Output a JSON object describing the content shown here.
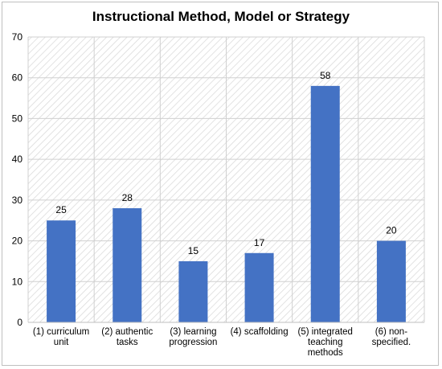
{
  "chart_data": {
    "type": "bar",
    "title": "Instructional Method, Model or Strategy",
    "categories": [
      [
        "(1) curriculum",
        "unit"
      ],
      [
        "(2) authentic",
        "tasks"
      ],
      [
        "(3) learning",
        "progression"
      ],
      [
        "(4) scaffolding"
      ],
      [
        "(5) integrated",
        "teaching",
        "methods"
      ],
      [
        "(6) non-",
        "specified."
      ]
    ],
    "values": [
      25,
      28,
      15,
      17,
      58,
      20
    ],
    "ylim": [
      0,
      70
    ],
    "yticks": [
      0,
      10,
      20,
      30,
      40,
      50,
      60,
      70
    ],
    "bar_color": "#4472c4",
    "grid": true,
    "legend": "none"
  }
}
